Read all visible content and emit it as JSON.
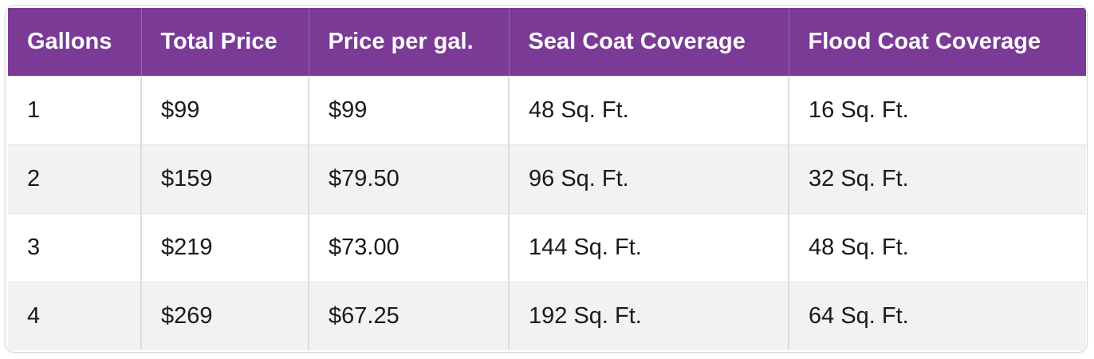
{
  "table": {
    "headers": [
      "Gallons",
      "Total Price",
      "Price per gal.",
      "Seal Coat Coverage",
      "Flood Coat Coverage"
    ],
    "rows": [
      [
        "1",
        "$99",
        "$99",
        "48 Sq. Ft.",
        "16 Sq. Ft."
      ],
      [
        "2",
        "$159",
        "$79.50",
        "96 Sq. Ft.",
        "32 Sq. Ft."
      ],
      [
        "3",
        "$219",
        "$73.00",
        "144 Sq. Ft.",
        "48 Sq. Ft."
      ],
      [
        "4",
        "$269",
        "$67.25",
        "192 Sq. Ft.",
        "64 Sq. Ft."
      ]
    ]
  },
  "colors": {
    "header_background": "#7b3a96",
    "header_text": "#ffffff",
    "row_alt_background": "#f2f2f2"
  }
}
